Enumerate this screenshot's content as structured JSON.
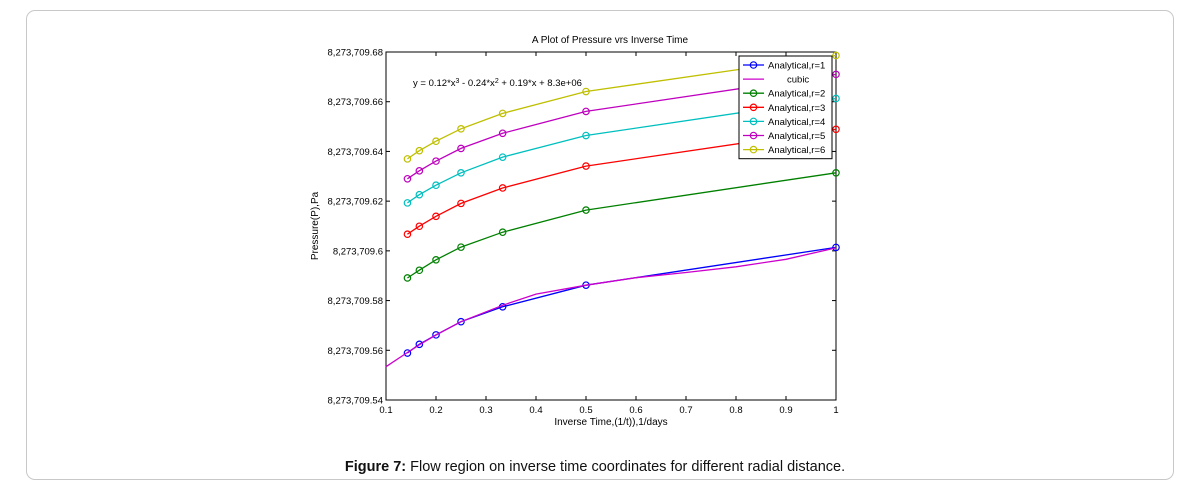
{
  "caption": {
    "label": "Figure 7:",
    "text": "Flow region on inverse time coordinates for different radial distance."
  },
  "colors": {
    "r1": "#0000ff",
    "cubic": "#cc00cc",
    "r2": "#008000",
    "r3": "#ff0000",
    "r4": "#00bfbf",
    "r5": "#bf00bf",
    "r6": "#bfbf00"
  },
  "chart_data": {
    "type": "line",
    "title": "A Plot of Pressure vrs Inverse Time",
    "xlabel": "Inverse Time,(1/t)),1/days",
    "ylabel": "Pressure(P),Pa",
    "xlim": [
      0.1,
      1
    ],
    "ylim": [
      8273709.54,
      8273709.68
    ],
    "xticks": [
      "0.1",
      "0.2",
      "0.3",
      "0.4",
      "0.5",
      "0.6",
      "0.7",
      "0.8",
      "0.9",
      "1"
    ],
    "xtick_values": [
      0.1,
      0.2,
      0.3,
      0.4,
      0.5,
      0.6,
      0.7,
      0.8,
      0.9,
      1
    ],
    "yticks": [
      "8,273,709.54",
      "8,273,709.56",
      "8,273,709.58",
      "8,273,709.6",
      "8,273,709.62",
      "8,273,709.64",
      "8,273,709.66",
      "8,273,709.68"
    ],
    "ytick_values": [
      8273709.54,
      8273709.56,
      8273709.58,
      8273709.6,
      8273709.62,
      8273709.64,
      8273709.66,
      8273709.68
    ],
    "grid": false,
    "legend_position": "top-right",
    "annotation": {
      "text": "y = 0.12*x^3 - 0.24*x^2 + 0.19*x + 8.3e+06",
      "at": [
        0.15,
        8273709.6675
      ]
    },
    "x": [
      0.1429,
      0.1667,
      0.2,
      0.25,
      0.3333,
      0.5,
      1
    ],
    "series": [
      {
        "name": "Analytical,r=1",
        "key": "r1",
        "marker": true,
        "values": [
          8273709.5589,
          8273709.5624,
          8273709.5662,
          8273709.5715,
          8273709.5775,
          8273709.5862,
          8273709.6014
        ]
      },
      {
        "name": "cubic",
        "key": "cubic",
        "marker": false,
        "x": [
          0.1,
          0.1429,
          0.1667,
          0.2,
          0.25,
          0.3333,
          0.4,
          0.5,
          0.6,
          0.7,
          0.8,
          0.9,
          1
        ],
        "values": [
          8273709.5534,
          8273709.5591,
          8273709.5622,
          8273709.5662,
          8273709.5715,
          8273709.5781,
          8273709.5826,
          8273709.5862,
          8273709.5892,
          8273709.5913,
          8273709.5936,
          8273709.5966,
          8273709.6012
        ]
      },
      {
        "name": "Analytical,r=2",
        "key": "r2",
        "marker": true,
        "values": [
          8273709.5891,
          8273709.5922,
          8273709.5964,
          8273709.6015,
          8273709.6075,
          8273709.6164,
          8273709.6314
        ]
      },
      {
        "name": "Analytical,r=3",
        "key": "r3",
        "marker": true,
        "values": [
          8273709.6067,
          8273709.6099,
          8273709.6139,
          8273709.6191,
          8273709.6253,
          8273709.6341,
          8273709.6489
        ]
      },
      {
        "name": "Analytical,r=4",
        "key": "r4",
        "marker": true,
        "values": [
          8273709.6193,
          8273709.6226,
          8273709.6264,
          8273709.6314,
          8273709.6377,
          8273709.6464,
          8273709.6613
        ]
      },
      {
        "name": "Analytical,r=5",
        "key": "r5",
        "marker": true,
        "values": [
          8273709.629,
          8273709.6322,
          8273709.6361,
          8273709.6412,
          8273709.6473,
          8273709.6561,
          8273709.671
        ]
      },
      {
        "name": "Analytical,r=6",
        "key": "r6",
        "marker": true,
        "values": [
          8273709.637,
          8273709.6403,
          8273709.6441,
          8273709.6491,
          8273709.6553,
          8273709.6641,
          8273709.6786
        ]
      }
    ]
  }
}
